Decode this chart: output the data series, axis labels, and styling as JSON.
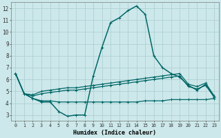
{
  "xlabel": "Humidex (Indice chaleur)",
  "x_ticks": [
    0,
    1,
    2,
    3,
    4,
    5,
    6,
    7,
    8,
    9,
    10,
    11,
    12,
    13,
    14,
    15,
    16,
    17,
    18,
    19,
    20,
    21,
    22,
    23
  ],
  "ylim": [
    2.5,
    12.5
  ],
  "xlim": [
    -0.5,
    23.5
  ],
  "yticks": [
    3,
    4,
    5,
    6,
    7,
    8,
    9,
    10,
    11,
    12
  ],
  "bg_color": "#cce8ea",
  "grid_color": "#aacccf",
  "line_color": "#006666",
  "series": {
    "main": [
      6.5,
      4.8,
      4.4,
      4.1,
      4.1,
      3.3,
      2.9,
      3.0,
      3.0,
      6.3,
      8.7,
      10.8,
      11.2,
      11.8,
      12.2,
      11.5,
      8.0,
      7.0,
      6.5,
      6.2,
      5.5,
      5.1,
      5.6,
      4.5
    ],
    "upper2": [
      6.5,
      4.8,
      4.7,
      5.0,
      5.1,
      5.2,
      5.3,
      5.3,
      5.4,
      5.5,
      5.6,
      5.7,
      5.8,
      5.9,
      6.0,
      6.1,
      6.2,
      6.3,
      6.4,
      6.5,
      5.6,
      5.4,
      5.7,
      4.6
    ],
    "upper1": [
      6.5,
      4.8,
      4.6,
      4.8,
      4.9,
      5.0,
      5.1,
      5.1,
      5.2,
      5.3,
      5.4,
      5.5,
      5.6,
      5.7,
      5.8,
      5.9,
      6.0,
      6.1,
      6.2,
      6.3,
      5.4,
      5.2,
      5.5,
      4.5
    ],
    "lower": [
      6.5,
      4.8,
      4.4,
      4.2,
      4.2,
      4.1,
      4.1,
      4.1,
      4.1,
      4.1,
      4.1,
      4.1,
      4.1,
      4.1,
      4.1,
      4.2,
      4.2,
      4.2,
      4.3,
      4.3,
      4.3,
      4.3,
      4.3,
      4.4
    ]
  }
}
